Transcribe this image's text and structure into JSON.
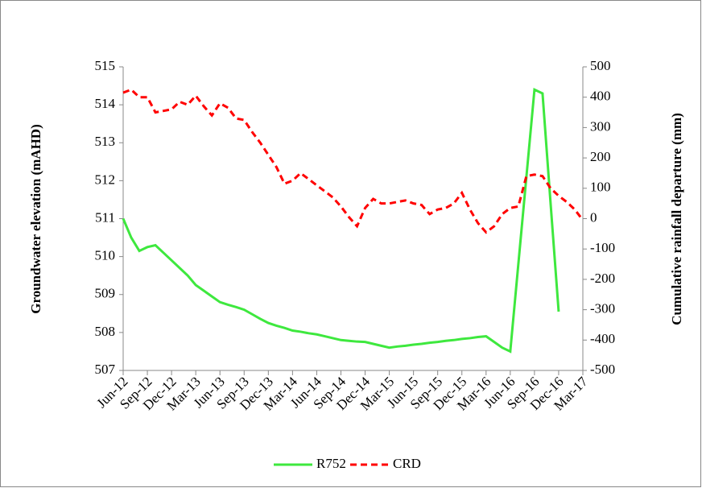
{
  "chart_data": {
    "type": "line",
    "categories": [
      "Jun-12",
      null,
      null,
      "Sep-12",
      null,
      null,
      "Dec-12",
      null,
      null,
      "Mar-13",
      null,
      null,
      "Jun-13",
      null,
      null,
      "Sep-13",
      null,
      null,
      "Dec-13",
      null,
      null,
      "Mar-14",
      null,
      null,
      "Jun-14",
      null,
      null,
      "Sep-14",
      null,
      null,
      "Dec-14",
      null,
      null,
      "Mar-15",
      null,
      null,
      "Jun-15",
      null,
      null,
      "Sep-15",
      null,
      null,
      "Dec-15",
      null,
      null,
      "Mar-16",
      null,
      null,
      "Jun-16",
      null,
      null,
      "Sep-16",
      null,
      null,
      "Dec-16",
      null,
      null,
      "Mar-17"
    ],
    "series": [
      {
        "name": "R752",
        "color": "#3ee83e",
        "values": [
          511.0,
          510.5,
          510.15,
          510.25,
          510.3,
          510.1,
          509.9,
          509.7,
          509.5,
          509.25,
          509.1,
          508.95,
          508.8,
          508.73,
          508.67,
          508.6,
          508.48,
          508.36,
          508.25,
          508.18,
          508.12,
          508.05,
          508.02,
          507.98,
          507.95,
          507.9,
          507.85,
          507.8,
          507.78,
          507.76,
          507.75,
          507.7,
          507.65,
          507.6,
          507.63,
          507.65,
          507.68,
          507.7,
          507.73,
          507.75,
          507.78,
          507.8,
          507.83,
          507.85,
          507.88,
          507.9,
          507.75,
          507.6,
          507.5,
          509.8,
          512.1,
          514.4,
          514.3,
          511.4,
          508.55,
          null,
          null,
          null
        ]
      },
      {
        "name": "CRD",
        "color": "#ff0000",
        "axis": "y2",
        "dashed": true,
        "values": [
          415,
          425,
          400,
          400,
          350,
          355,
          360,
          385,
          375,
          405,
          370,
          340,
          380,
          365,
          330,
          325,
          285,
          250,
          210,
          170,
          115,
          125,
          150,
          130,
          110,
          90,
          70,
          40,
          5,
          -25,
          35,
          65,
          50,
          50,
          55,
          60,
          50,
          45,
          15,
          30,
          35,
          50,
          85,
          30,
          -15,
          -45,
          -25,
          15,
          35,
          40,
          140,
          145,
          140,
          100,
          75,
          55,
          30,
          -5
        ]
      }
    ],
    "ylabel": "Groundwater elevation (mAHD)",
    "y2label": "Cumulative rainfall departure (mm)",
    "ylim": [
      507,
      515
    ],
    "yticks": [
      507,
      508,
      509,
      510,
      511,
      512,
      513,
      514,
      515
    ],
    "y2lim": [
      -500,
      500
    ],
    "y2ticks": [
      -500,
      -400,
      -300,
      -200,
      -100,
      0,
      100,
      200,
      300,
      400,
      500
    ],
    "grid": false,
    "legend": "bottom"
  }
}
